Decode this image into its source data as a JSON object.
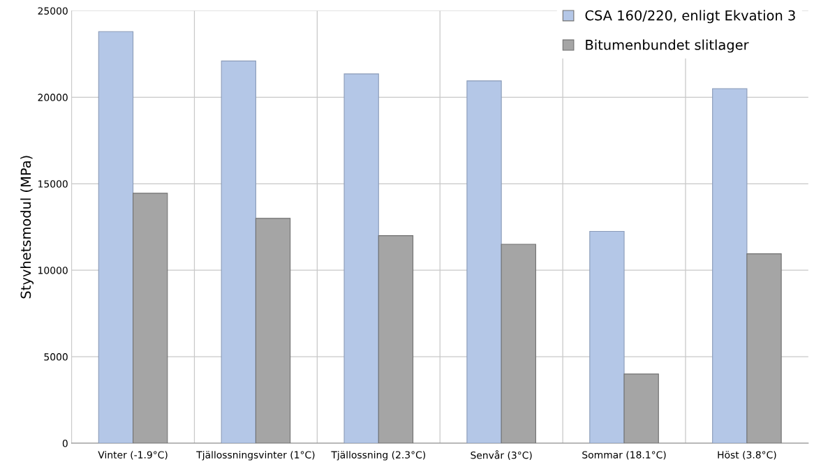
{
  "chart_data": {
    "type": "bar",
    "ylabel": "Styvhetsmodul (MPa)",
    "categories": [
      "Vinter (-1.9°C)",
      "Tjällossningsvinter (1°C)",
      "Tjällossning (2.3°C)",
      "Senvår (3°C)",
      "Sommar (18.1°C)",
      "Höst (3.8°C)"
    ],
    "series": [
      {
        "name": "CSA 160/220, enligt Ekvation 3",
        "color": "#b4c7e7",
        "values": [
          23800,
          22100,
          21350,
          20950,
          12250,
          20500
        ]
      },
      {
        "name": "Bitumenbundet slitlager",
        "color": "#a5a5a5",
        "values": [
          14450,
          13000,
          12000,
          11500,
          4000,
          10950
        ]
      }
    ],
    "ylim": [
      0,
      25000
    ],
    "yticks": [
      0,
      5000,
      10000,
      15000,
      20000,
      25000
    ],
    "grid": true,
    "legend": "top right"
  }
}
